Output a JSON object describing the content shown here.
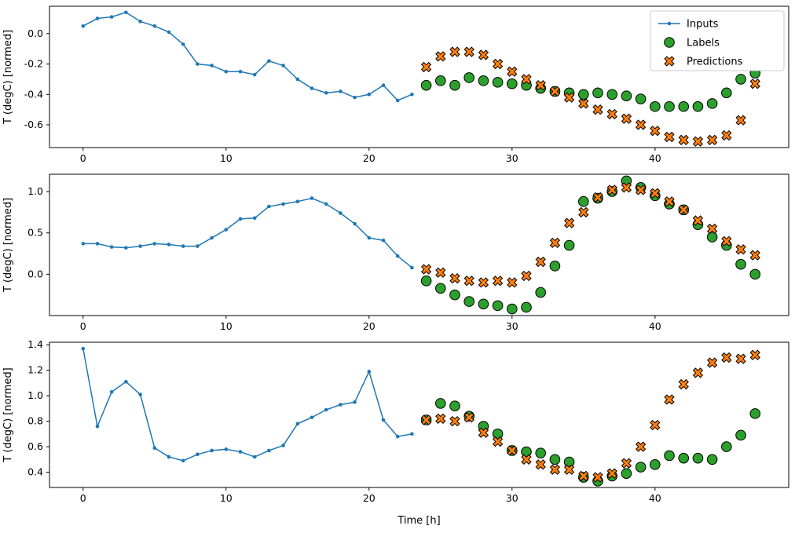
{
  "figure": {
    "background": "#ffffff",
    "frame_color": "#000000"
  },
  "legend": {
    "position": "top-right-of-first-subplot",
    "border_color": "#cccccc",
    "entries": [
      "Inputs",
      "Labels",
      "Predictions"
    ]
  },
  "chart_data": [
    {
      "type": "line",
      "title": "",
      "xlabel": "",
      "ylabel": "T (degC) [normed]",
      "xlim": [
        -2.35,
        49.35
      ],
      "ylim": [
        -0.75,
        0.18
      ],
      "xticks": [
        0,
        10,
        20,
        30,
        40
      ],
      "yticks": [
        0.0,
        -0.2,
        -0.4,
        -0.6
      ],
      "grid": false,
      "legend_visible": true,
      "series": [
        {
          "name": "Inputs",
          "type": "line",
          "color": "#1f77b4",
          "x": [
            0,
            1,
            2,
            3,
            4,
            5,
            6,
            7,
            8,
            9,
            10,
            11,
            12,
            13,
            14,
            15,
            16,
            17,
            18,
            19,
            20,
            21,
            22,
            23
          ],
          "y": [
            0.05,
            0.1,
            0.11,
            0.14,
            0.08,
            0.05,
            0.01,
            -0.07,
            -0.2,
            -0.21,
            -0.25,
            -0.25,
            -0.27,
            -0.18,
            -0.21,
            -0.3,
            -0.36,
            -0.39,
            -0.38,
            -0.42,
            -0.4,
            -0.34,
            -0.44,
            -0.4
          ]
        },
        {
          "name": "Labels",
          "type": "scatter-circle",
          "color": "#2ca02c",
          "x": [
            24,
            25,
            26,
            27,
            28,
            29,
            30,
            31,
            32,
            33,
            34,
            35,
            36,
            37,
            38,
            39,
            40,
            41,
            42,
            43,
            44,
            45,
            46,
            47
          ],
          "y": [
            -0.34,
            -0.31,
            -0.34,
            -0.29,
            -0.31,
            -0.32,
            -0.33,
            -0.34,
            -0.36,
            -0.38,
            -0.39,
            -0.4,
            -0.39,
            -0.4,
            -0.41,
            -0.43,
            -0.48,
            -0.48,
            -0.48,
            -0.48,
            -0.46,
            -0.39,
            -0.3,
            -0.26
          ]
        },
        {
          "name": "Predictions",
          "type": "scatter-x",
          "color": "#ff7f0e",
          "x": [
            24,
            25,
            26,
            27,
            28,
            29,
            30,
            31,
            32,
            33,
            34,
            35,
            36,
            37,
            38,
            39,
            40,
            41,
            42,
            43,
            44,
            45,
            46,
            47
          ],
          "y": [
            -0.22,
            -0.15,
            -0.12,
            -0.12,
            -0.14,
            -0.2,
            -0.25,
            -0.3,
            -0.34,
            -0.38,
            -0.42,
            -0.46,
            -0.5,
            -0.53,
            -0.56,
            -0.6,
            -0.64,
            -0.68,
            -0.7,
            -0.71,
            -0.7,
            -0.67,
            -0.57,
            -0.33
          ]
        }
      ]
    },
    {
      "type": "line",
      "title": "",
      "xlabel": "",
      "ylabel": "T (degC) [normed]",
      "xlim": [
        -2.35,
        49.35
      ],
      "ylim": [
        -0.5,
        1.21
      ],
      "xticks": [
        0,
        10,
        20,
        30,
        40
      ],
      "yticks": [
        0.0,
        0.5,
        1.0
      ],
      "grid": false,
      "legend_visible": false,
      "series": [
        {
          "name": "Inputs",
          "type": "line",
          "color": "#1f77b4",
          "x": [
            0,
            1,
            2,
            3,
            4,
            5,
            6,
            7,
            8,
            9,
            10,
            11,
            12,
            13,
            14,
            15,
            16,
            17,
            18,
            19,
            20,
            21,
            22,
            23
          ],
          "y": [
            0.37,
            0.37,
            0.33,
            0.32,
            0.34,
            0.37,
            0.36,
            0.34,
            0.34,
            0.44,
            0.54,
            0.67,
            0.68,
            0.82,
            0.85,
            0.88,
            0.92,
            0.85,
            0.74,
            0.61,
            0.44,
            0.41,
            0.22,
            0.08
          ]
        },
        {
          "name": "Labels",
          "type": "scatter-circle",
          "color": "#2ca02c",
          "x": [
            24,
            25,
            26,
            27,
            28,
            29,
            30,
            31,
            32,
            33,
            34,
            35,
            36,
            37,
            38,
            39,
            40,
            41,
            42,
            43,
            44,
            45,
            46,
            47
          ],
          "y": [
            -0.08,
            -0.17,
            -0.25,
            -0.33,
            -0.36,
            -0.38,
            -0.42,
            -0.4,
            -0.22,
            0.1,
            0.35,
            0.88,
            0.92,
            1.0,
            1.13,
            1.05,
            0.95,
            0.85,
            0.78,
            0.6,
            0.45,
            0.35,
            0.12,
            0.0
          ]
        },
        {
          "name": "Predictions",
          "type": "scatter-x",
          "color": "#ff7f0e",
          "x": [
            24,
            25,
            26,
            27,
            28,
            29,
            30,
            31,
            32,
            33,
            34,
            35,
            36,
            37,
            38,
            39,
            40,
            41,
            42,
            43,
            44,
            45,
            46,
            47
          ],
          "y": [
            0.06,
            0.02,
            -0.05,
            -0.08,
            -0.1,
            -0.08,
            -0.1,
            -0.02,
            0.15,
            0.38,
            0.62,
            0.75,
            0.93,
            1.02,
            1.05,
            1.02,
            0.98,
            0.88,
            0.78,
            0.65,
            0.55,
            0.4,
            0.3,
            0.23
          ]
        }
      ]
    },
    {
      "type": "line",
      "title": "",
      "xlabel": "Time [h]",
      "ylabel": "T (degC) [normed]",
      "xlim": [
        -2.35,
        49.35
      ],
      "ylim": [
        0.28,
        1.42
      ],
      "xticks": [
        0,
        10,
        20,
        30,
        40
      ],
      "yticks": [
        0.4,
        0.6,
        0.8,
        1.0,
        1.2,
        1.4
      ],
      "grid": false,
      "legend_visible": false,
      "series": [
        {
          "name": "Inputs",
          "type": "line",
          "color": "#1f77b4",
          "x": [
            0,
            1,
            2,
            3,
            4,
            5,
            6,
            7,
            8,
            9,
            10,
            11,
            12,
            13,
            14,
            15,
            16,
            17,
            18,
            19,
            20,
            21,
            22,
            23
          ],
          "y": [
            1.37,
            0.76,
            1.03,
            1.11,
            1.01,
            0.59,
            0.52,
            0.49,
            0.54,
            0.57,
            0.58,
            0.56,
            0.52,
            0.57,
            0.61,
            0.78,
            0.83,
            0.89,
            0.93,
            0.95,
            1.19,
            0.81,
            0.68,
            0.7
          ]
        },
        {
          "name": "Labels",
          "type": "scatter-circle",
          "color": "#2ca02c",
          "x": [
            24,
            25,
            26,
            27,
            28,
            29,
            30,
            31,
            32,
            33,
            34,
            35,
            36,
            37,
            38,
            39,
            40,
            41,
            42,
            43,
            44,
            45,
            46,
            47
          ],
          "y": [
            0.81,
            0.94,
            0.92,
            0.84,
            0.76,
            0.7,
            0.57,
            0.56,
            0.55,
            0.5,
            0.48,
            0.36,
            0.33,
            0.37,
            0.39,
            0.44,
            0.46,
            0.53,
            0.51,
            0.51,
            0.5,
            0.6,
            0.69,
            0.86
          ]
        },
        {
          "name": "Predictions",
          "type": "scatter-x",
          "color": "#ff7f0e",
          "x": [
            24,
            25,
            26,
            27,
            28,
            29,
            30,
            31,
            32,
            33,
            34,
            35,
            36,
            37,
            38,
            39,
            40,
            41,
            42,
            43,
            44,
            45,
            46,
            47
          ],
          "y": [
            0.81,
            0.82,
            0.8,
            0.83,
            0.71,
            0.64,
            0.57,
            0.5,
            0.46,
            0.42,
            0.42,
            0.37,
            0.36,
            0.39,
            0.47,
            0.6,
            0.77,
            0.97,
            1.09,
            1.18,
            1.26,
            1.3,
            1.29,
            1.32
          ]
        }
      ]
    }
  ]
}
